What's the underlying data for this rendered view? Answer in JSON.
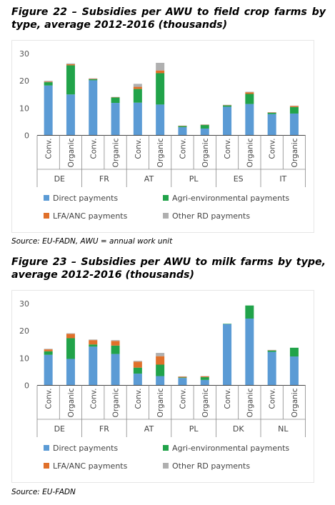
{
  "figures": [
    {
      "title": "Figure 22 – Subsidies per AWU to field crop farms by type, average 2012-2016 (thousands)",
      "source": "Source: EU-FADN, AWU = annual work unit",
      "chart_data": {
        "type": "bar",
        "stacked": true,
        "ylim": [
          0,
          30
        ],
        "yticks": [
          0,
          10,
          20,
          30
        ],
        "groups": [
          "DE",
          "FR",
          "AT",
          "PL",
          "ES",
          "IT"
        ],
        "categories": [
          "Conv.",
          "Organic",
          "Conv.",
          "Organic",
          "Conv.",
          "Organic",
          "Conv.",
          "Organic",
          "Conv.",
          "Organic",
          "Conv.",
          "Organic"
        ],
        "series": [
          {
            "name": "Direct payments",
            "color": "#5b9bd5",
            "values": [
              18.3,
              15.0,
              20.2,
              11.9,
              12.0,
              11.3,
              3.0,
              2.5,
              10.5,
              11.5,
              7.8,
              8.0
            ]
          },
          {
            "name": "Agri-environmental payments",
            "color": "#21a34a",
            "values": [
              1.2,
              10.7,
              0.4,
              2.0,
              5.0,
              11.5,
              0.4,
              1.3,
              0.5,
              3.7,
              0.5,
              2.4
            ]
          },
          {
            "name": "LFA/ANC payments",
            "color": "#e0702a",
            "values": [
              0.2,
              0.4,
              0.1,
              0.1,
              0.8,
              1.0,
              0.1,
              0.1,
              0.1,
              0.6,
              0.1,
              0.4
            ]
          },
          {
            "name": "Other RD payments",
            "color": "#b0b0b0",
            "values": [
              0.3,
              0.3,
              0.2,
              0.1,
              1.1,
              2.8,
              0.1,
              0.1,
              0.1,
              0.2,
              0.1,
              0.1
            ]
          }
        ],
        "legend": "bottom"
      }
    },
    {
      "title": "Figure 23 – Subsidies per AWU to milk farms by type, average 2012-2016 (thousands)",
      "source": "Source: EU-FADN",
      "chart_data": {
        "type": "bar",
        "stacked": true,
        "ylim": [
          0,
          30
        ],
        "yticks": [
          0,
          10,
          20,
          30
        ],
        "groups": [
          "DE",
          "FR",
          "AT",
          "PL",
          "DK",
          "NL"
        ],
        "categories": [
          "Conv.",
          "Organic",
          "Conv.",
          "Organic",
          "Conv.",
          "Organic",
          "Conv.",
          "Organic",
          "Conv.",
          "Organic",
          "Conv.",
          "Organic"
        ],
        "series": [
          {
            "name": "Direct payments",
            "color": "#5b9bd5",
            "values": [
              11.2,
              9.7,
              14.2,
              11.5,
              4.3,
              3.4,
              2.7,
              2.0,
              22.5,
              24.5,
              12.3,
              10.6
            ]
          },
          {
            "name": "Agri-environmental payments",
            "color": "#21a34a",
            "values": [
              1.3,
              7.6,
              0.8,
              3.1,
              2.2,
              4.2,
              0.2,
              1.0,
              0.1,
              4.8,
              0.5,
              3.2
            ]
          },
          {
            "name": "LFA/ANC payments",
            "color": "#e0702a",
            "values": [
              0.7,
              1.6,
              1.6,
              1.7,
              2.2,
              3.1,
              0.3,
              0.3,
              0.0,
              0.0,
              0.1,
              0.0
            ]
          },
          {
            "name": "Other RD payments",
            "color": "#b0b0b0",
            "values": [
              0.2,
              0.2,
              0.2,
              0.3,
              0.3,
              1.2,
              0.1,
              0.1,
              0.0,
              0.0,
              0.1,
              0.0
            ]
          }
        ],
        "legend": "bottom"
      }
    }
  ]
}
